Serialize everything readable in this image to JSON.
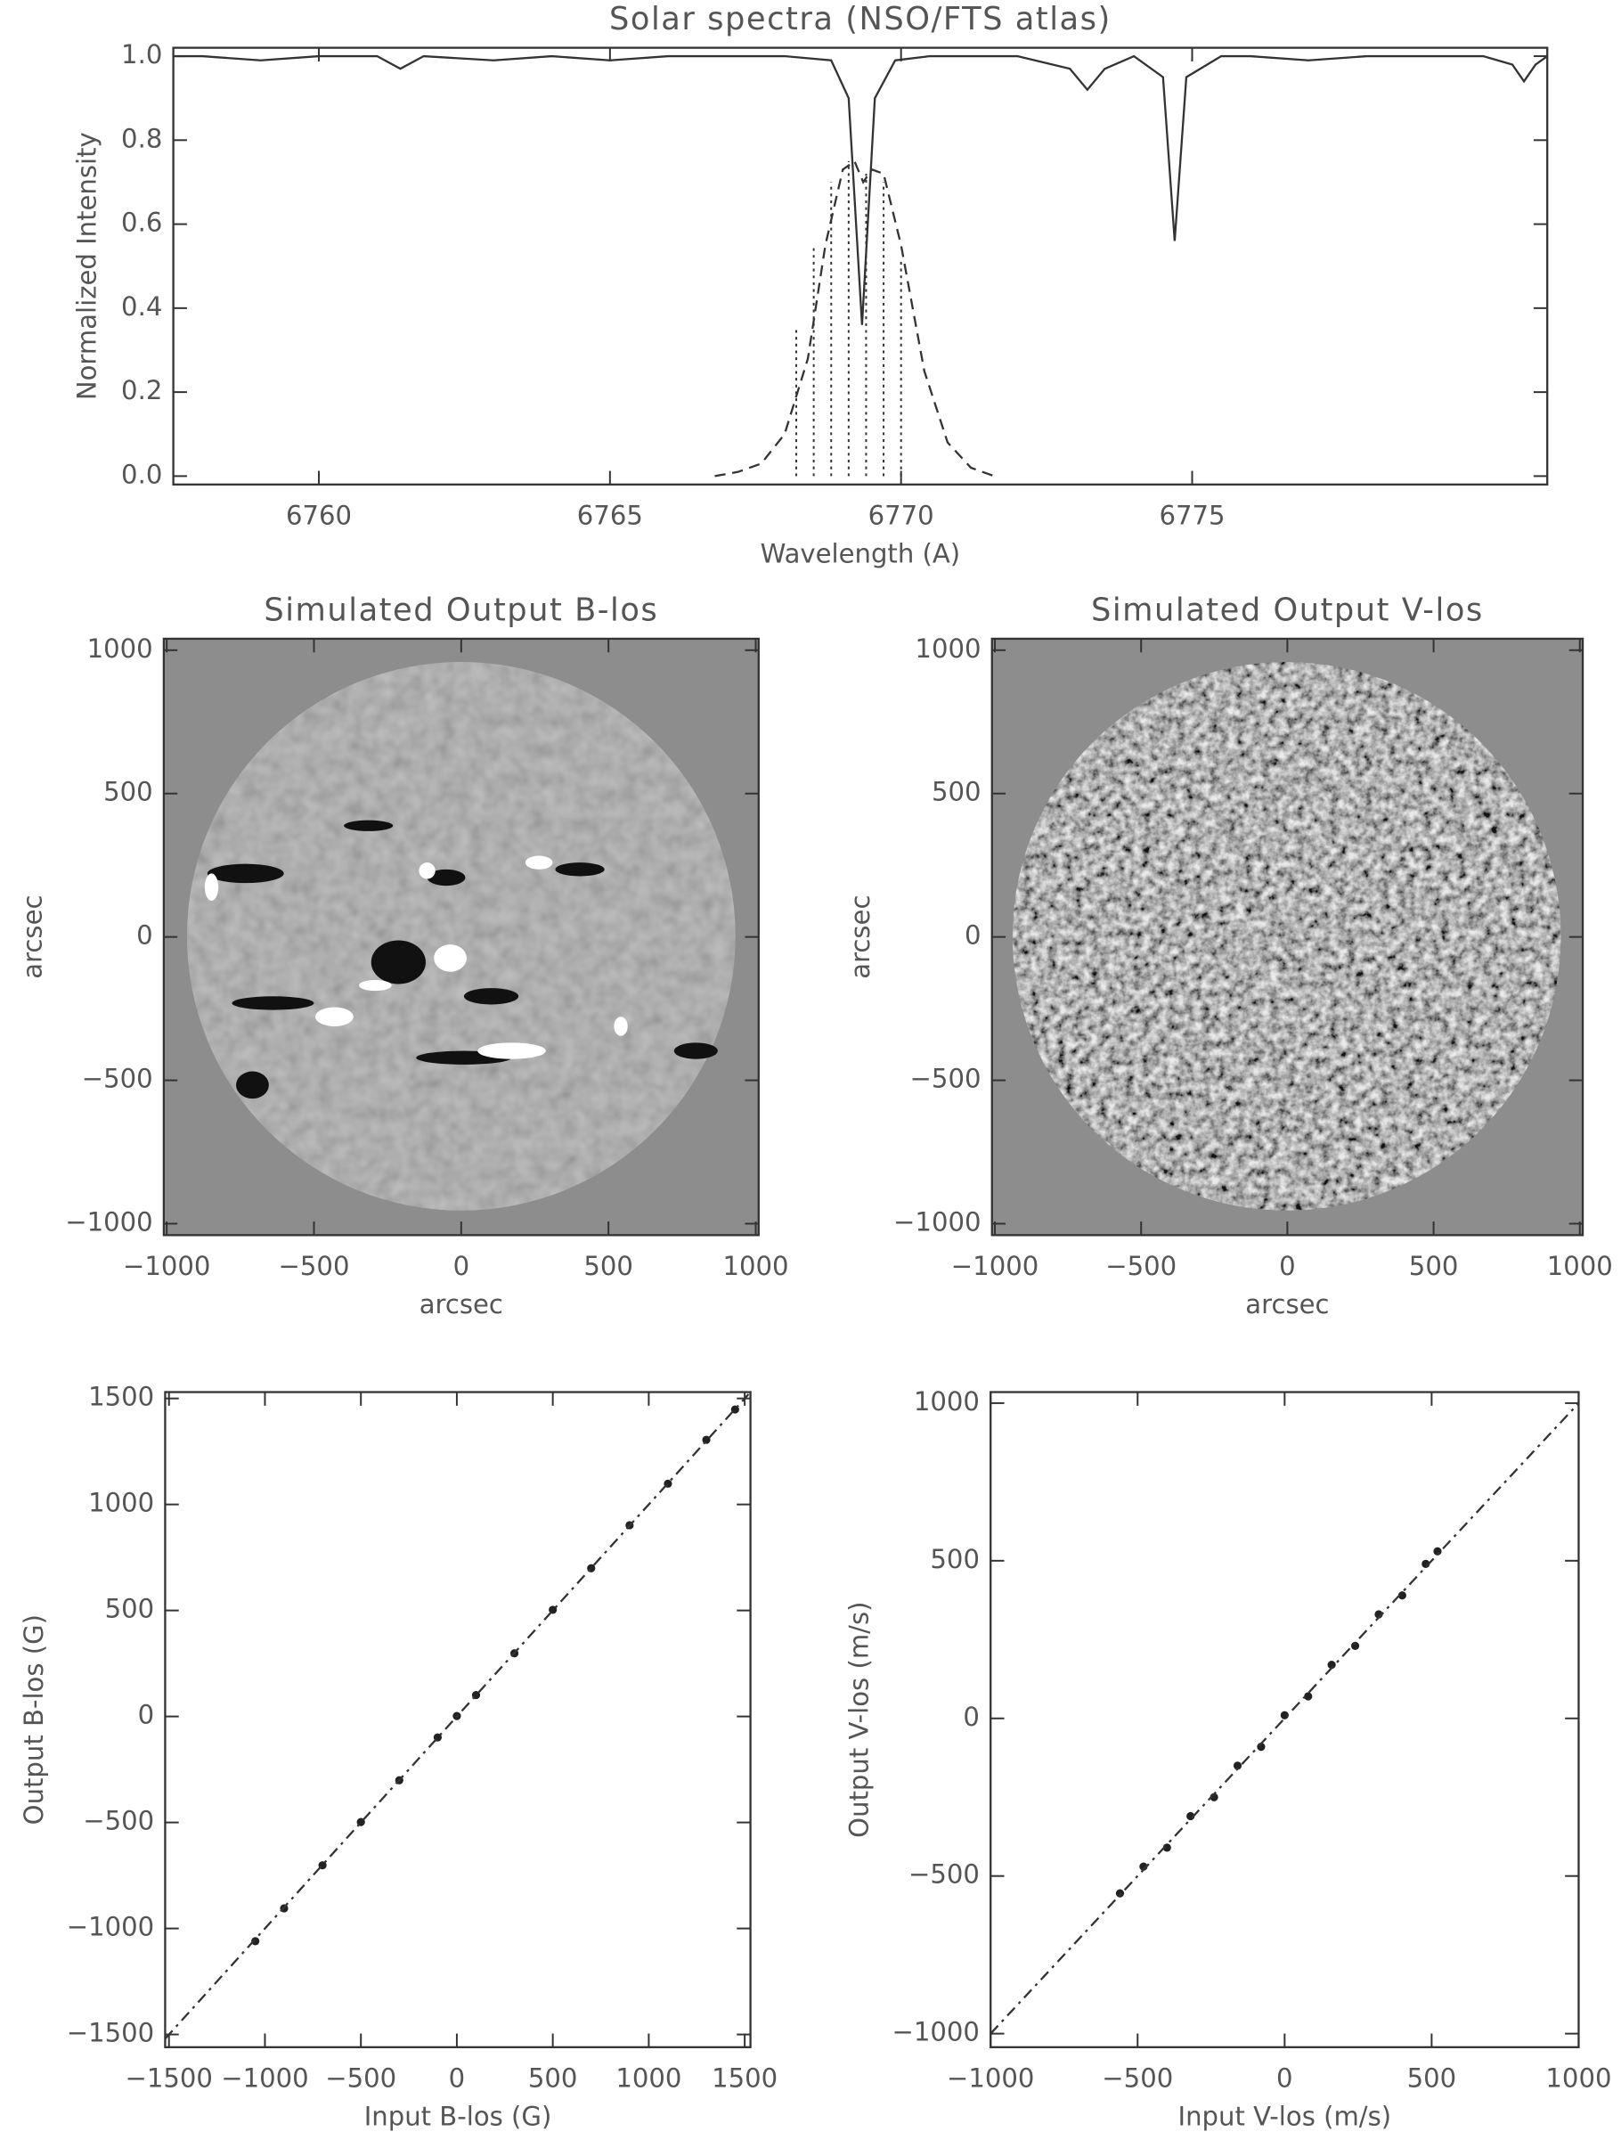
{
  "chart_data": [
    {
      "type": "line",
      "title": "Solar spectra (NSO/FTS atlas)",
      "x_label": "Wavelength (A)",
      "y_label": "Normalized Intensity",
      "xlim": [
        6757.5,
        6781.1
      ],
      "ylim": [
        -0.02,
        1.02
      ],
      "xticks": [
        6760,
        6765,
        6770,
        6775
      ],
      "yticks": [
        {
          "value": 0,
          "label": "0.0"
        },
        0.2,
        0.4,
        0.6,
        0.8,
        {
          "value": 1,
          "label": "1.0"
        }
      ],
      "series": [
        {
          "style": "solid",
          "color": "#333333",
          "x": [
            6757.5,
            6758,
            6759,
            6760,
            6761,
            6761.4,
            6761.8,
            6763,
            6764,
            6765,
            6766,
            6767,
            6768,
            6768.8,
            6769.1,
            6769.33,
            6769.55,
            6769.9,
            6770.5,
            6771,
            6772,
            6772.9,
            6773.2,
            6773.5,
            6774,
            6774.5,
            6774.7,
            6774.9,
            6775.5,
            6776,
            6777,
            6778,
            6779,
            6780,
            6780.5,
            6780.7,
            6780.9,
            6781.1
          ],
          "values": [
            1.0,
            1.0,
            0.99,
            1.0,
            1.0,
            0.97,
            1.0,
            0.99,
            1.0,
            0.99,
            1.0,
            1.0,
            1.0,
            0.99,
            0.9,
            0.36,
            0.9,
            0.99,
            1.0,
            1.0,
            1.0,
            0.97,
            0.92,
            0.97,
            1.0,
            0.95,
            0.56,
            0.95,
            1.0,
            1.0,
            0.99,
            1.0,
            1.0,
            1.0,
            0.98,
            0.94,
            0.98,
            1.0
          ]
        },
        {
          "style": "dashed",
          "color": "#333333",
          "x": [
            6766.8,
            6767.2,
            6767.6,
            6768,
            6768.4,
            6768.7,
            6769,
            6769.2,
            6769.35,
            6769.5,
            6769.7,
            6770,
            6770.4,
            6770.8,
            6771.2,
            6771.6
          ],
          "values": [
            0,
            0.01,
            0.03,
            0.1,
            0.28,
            0.55,
            0.73,
            0.75,
            0.7,
            0.73,
            0.72,
            0.55,
            0.25,
            0.08,
            0.02,
            0
          ]
        },
        {
          "style": "stems",
          "color": "#333333",
          "x": [
            6768.2,
            6768.5,
            6768.8,
            6769.1,
            6769.4,
            6769.7,
            6770.0
          ],
          "values": [
            0.35,
            0.55,
            0.7,
            0.75,
            0.72,
            0.7,
            0.52
          ]
        }
      ]
    },
    {
      "type": "image",
      "title": "Simulated Output B-los",
      "x_label": "arcsec",
      "y_label": "arcsec",
      "xlim": [
        -1010,
        1010
      ],
      "ylim": [
        -1040,
        1040
      ],
      "xticks": [
        {
          "value": -1000,
          "label": "−1000"
        },
        {
          "value": -500,
          "label": "−500"
        },
        0,
        500,
        1000
      ],
      "yticks": [
        {
          "value": -1000,
          "label": "−1000"
        },
        {
          "value": -500,
          "label": "−500"
        },
        0,
        500,
        1000
      ]
    },
    {
      "type": "image",
      "title": "Simulated Output V-los",
      "x_label": "arcsec",
      "y_label": "arcsec",
      "xlim": [
        -1010,
        1010
      ],
      "ylim": [
        -1040,
        1040
      ],
      "xticks": [
        {
          "value": -1000,
          "label": "−1000"
        },
        {
          "value": -500,
          "label": "−500"
        },
        0,
        500,
        1000
      ],
      "yticks": [
        {
          "value": -1000,
          "label": "−1000"
        },
        {
          "value": -500,
          "label": "−500"
        },
        0,
        500,
        1000
      ]
    },
    {
      "type": "scatter",
      "x_label": "Input B-los (G)",
      "y_label": "Output B-los (G)",
      "xlim": [
        -1520,
        1530
      ],
      "ylim": [
        -1560,
        1530
      ],
      "xticks": [
        {
          "value": -1500,
          "label": "−1500"
        },
        {
          "value": -1000,
          "label": "−1000"
        },
        {
          "value": -500,
          "label": "−500"
        },
        0,
        500,
        1000,
        1500
      ],
      "yticks": [
        {
          "value": -1500,
          "label": "−1500"
        },
        {
          "value": -1000,
          "label": "−1000"
        },
        {
          "value": -500,
          "label": "−500"
        },
        0,
        500,
        1000,
        1500
      ],
      "series": [
        {
          "style": "points",
          "color": "#222222",
          "x": [
            -1050,
            -900,
            -700,
            -500,
            -300,
            -100,
            0,
            100,
            300,
            500,
            700,
            900,
            1100,
            1300,
            1450
          ],
          "values": [
            -1060,
            -905,
            -702,
            -498,
            -301,
            -99,
            2,
            101,
            298,
            503,
            699,
            902,
            1098,
            1305,
            1448
          ]
        },
        {
          "style": "dashdot",
          "color": "#333333",
          "x": [
            -1520,
            1520
          ],
          "values": [
            -1520,
            1520
          ]
        }
      ]
    },
    {
      "type": "scatter",
      "x_label": "Input V-los (m/s)",
      "y_label": "Output V-los (m/s)",
      "xlim": [
        -1000,
        1000
      ],
      "ylim": [
        -1043,
        1035
      ],
      "xticks": [
        {
          "value": -1000,
          "label": "−1000"
        },
        {
          "value": -500,
          "label": "−500"
        },
        0,
        500,
        1000
      ],
      "yticks": [
        {
          "value": -1000,
          "label": "−1000"
        },
        {
          "value": -500,
          "label": "−500"
        },
        0,
        500,
        1000
      ],
      "series": [
        {
          "style": "points",
          "color": "#222222",
          "x": [
            -560,
            -480,
            -400,
            -320,
            -240,
            -160,
            -80,
            0,
            80,
            160,
            240,
            320,
            400,
            480,
            520
          ],
          "values": [
            -555,
            -470,
            -410,
            -310,
            -250,
            -150,
            -90,
            10,
            70,
            170,
            230,
            330,
            390,
            490,
            530
          ]
        },
        {
          "style": "dashdot",
          "color": "#333333",
          "x": [
            -1000,
            1000
          ],
          "values": [
            -1000,
            1000
          ]
        }
      ]
    }
  ]
}
